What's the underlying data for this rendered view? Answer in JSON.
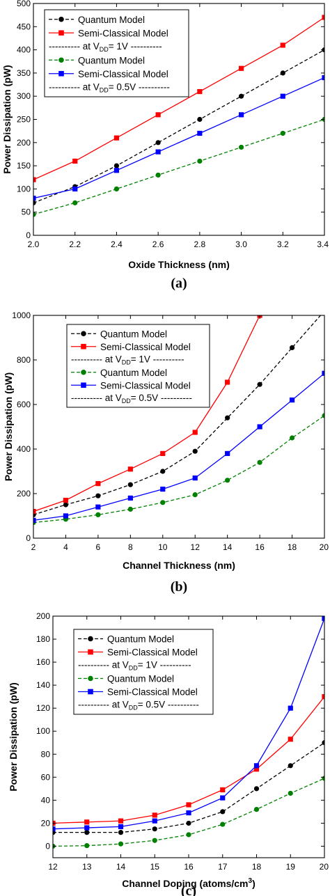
{
  "chart_data": [
    {
      "type": "line",
      "panel_label": "(a)",
      "xlabel": "Oxide Thickness (nm)",
      "ylabel": "Power Dissipation (pW)",
      "xlim": [
        2.0,
        3.4
      ],
      "ylim": [
        0,
        500
      ],
      "xticks": [
        "2.0",
        "2.2",
        "2.4",
        "2.6",
        "2.8",
        "3.0",
        "3.2",
        "3.4"
      ],
      "yticks": [
        "0",
        "50",
        "100",
        "150",
        "200",
        "250",
        "300",
        "350",
        "400",
        "450",
        "500"
      ],
      "x": [
        2.0,
        2.2,
        2.4,
        2.6,
        2.8,
        3.0,
        3.2,
        3.4
      ],
      "legend": [
        {
          "text": "Quantum Model"
        },
        {
          "text": "Semi-Classical Model"
        },
        {
          "pre": "---------- at V",
          "sub": "DD",
          "post": "= 1V ----------"
        },
        {
          "text": "Quantum Model"
        },
        {
          "text": "Semi-Classical Model"
        },
        {
          "pre": "---------- at V",
          "sub": "DD",
          "post": "= 0.5V ----------"
        }
      ],
      "series": [
        {
          "values": [
            70,
            105,
            150,
            200,
            250,
            300,
            350,
            400
          ],
          "color": "#000000",
          "marker": "circle",
          "dash": true
        },
        {
          "values": [
            120,
            160,
            210,
            260,
            310,
            360,
            410,
            470
          ],
          "color": "#ff0000",
          "marker": "square",
          "dash": false
        },
        {
          "values": [
            45,
            70,
            100,
            130,
            160,
            190,
            220,
            250
          ],
          "color": "#008000",
          "marker": "circle",
          "dash": true
        },
        {
          "values": [
            80,
            100,
            140,
            180,
            220,
            260,
            300,
            340
          ],
          "color": "#0000ff",
          "marker": "square",
          "dash": false
        }
      ]
    },
    {
      "type": "line",
      "panel_label": "(b)",
      "xlabel": "Channel Thickness (nm)",
      "ylabel": "Power Dissipation (pW)",
      "xlim": [
        2,
        20
      ],
      "ylim": [
        0,
        1000
      ],
      "xticks": [
        "2",
        "4",
        "6",
        "8",
        "10",
        "12",
        "14",
        "16",
        "18",
        "20"
      ],
      "yticks": [
        "0",
        "200",
        "400",
        "600",
        "800",
        "1000"
      ],
      "x": [
        2,
        4,
        6,
        8,
        10,
        12,
        14,
        16,
        18,
        20
      ],
      "legend": [
        {
          "text": "Quantum Model"
        },
        {
          "text": "Semi-Classical Model"
        },
        {
          "pre": "---------- at V",
          "sub": "DD",
          "post": "= 1V ----------"
        },
        {
          "text": "Quantum Model"
        },
        {
          "text": "Semi-Classical Model"
        },
        {
          "pre": "---------- at V",
          "sub": "DD",
          "post": "= 0.5V ----------"
        }
      ],
      "series": [
        {
          "values": [
            105,
            150,
            190,
            240,
            300,
            390,
            540,
            690,
            855,
            1020
          ],
          "color": "#000000",
          "marker": "circle",
          "dash": true
        },
        {
          "values": [
            120,
            170,
            245,
            310,
            380,
            475,
            700,
            1000,
            null,
            null
          ],
          "color": "#ff0000",
          "marker": "square",
          "dash": false
        },
        {
          "values": [
            70,
            85,
            105,
            130,
            160,
            195,
            260,
            340,
            450,
            550
          ],
          "color": "#008000",
          "marker": "circle",
          "dash": true
        },
        {
          "values": [
            80,
            100,
            140,
            180,
            220,
            270,
            380,
            500,
            620,
            740
          ],
          "color": "#0000ff",
          "marker": "square",
          "dash": false
        }
      ]
    },
    {
      "type": "line",
      "panel_label": "(c)",
      "xlabel": "Channel Doping (atoms/cm",
      "xlabel_sup": "3",
      "xlabel_end": ")",
      "ylabel": "Power Dissipation (pW)",
      "xlim": [
        12,
        20
      ],
      "ylim": [
        -10,
        200
      ],
      "xticks": [
        "12",
        "13",
        "14",
        "15",
        "16",
        "17",
        "18",
        "19",
        "20"
      ],
      "yticks": [
        "0",
        "20",
        "40",
        "60",
        "80",
        "100",
        "120",
        "140",
        "160",
        "180",
        "200"
      ],
      "x": [
        12,
        13,
        14,
        15,
        16,
        17,
        18,
        19,
        20
      ],
      "legend": [
        {
          "text": "Quantum Model"
        },
        {
          "text": "Semi-Classical Model"
        },
        {
          "pre": "---------- at V",
          "sub": "DD",
          "post": "= 1V ----------"
        },
        {
          "text": "Quantum Model"
        },
        {
          "text": "Semi-Classical Model"
        },
        {
          "pre": "---------- at V",
          "sub": "DD",
          "post": "= 0.5V ----------"
        }
      ],
      "series": [
        {
          "values": [
            12,
            12,
            12,
            15,
            20,
            30,
            50,
            70,
            90
          ],
          "color": "#000000",
          "marker": "circle",
          "dash": true
        },
        {
          "values": [
            20,
            21,
            22,
            27,
            36,
            49,
            67,
            93,
            130
          ],
          "color": "#ff0000",
          "marker": "square",
          "dash": false
        },
        {
          "values": [
            0,
            0.5,
            2,
            5,
            10,
            19,
            32,
            46,
            59
          ],
          "color": "#008000",
          "marker": "circle",
          "dash": true
        },
        {
          "values": [
            15,
            16,
            17,
            22,
            29,
            42,
            70,
            120,
            198
          ],
          "color": "#0000ff",
          "marker": "square",
          "dash": false
        }
      ]
    }
  ]
}
